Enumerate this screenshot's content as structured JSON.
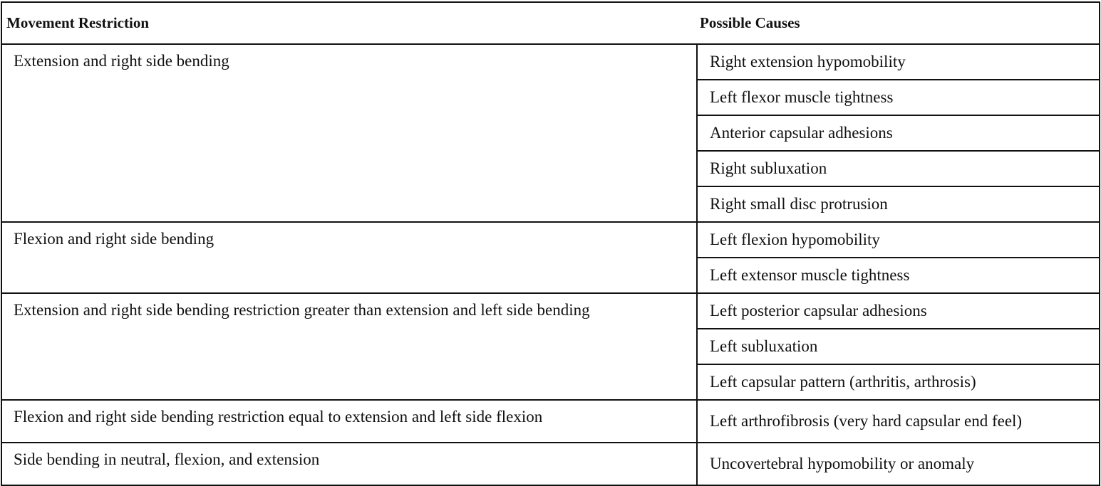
{
  "header": {
    "col1": "Movement Restriction",
    "col2": "Possible Causes"
  },
  "rows": [
    {
      "restriction": "Extension and right side bending",
      "causes": [
        "Right extension hypomobility",
        "Left flexor muscle tightness",
        "Anterior capsular adhesions",
        "Right subluxation",
        "Right small disc protrusion"
      ]
    },
    {
      "restriction": "Flexion and right side bending",
      "causes": [
        "Left flexion hypomobility",
        "Left extensor muscle tightness"
      ]
    },
    {
      "restriction": "Extension and right side bending restriction greater than extension and left side bending",
      "causes": [
        "Left posterior capsular adhesions",
        "Left subluxation",
        "Left capsular pattern (arthritis, arthrosis)"
      ]
    },
    {
      "restriction": "Flexion and right side bending restriction equal to extension and left side flexion",
      "causes": [
        "Left arthrofibrosis (very hard capsular end feel)"
      ]
    },
    {
      "restriction": "Side bending in neutral, flexion, and extension",
      "causes": [
        "Uncovertebral hypomobility or anomaly"
      ]
    }
  ]
}
